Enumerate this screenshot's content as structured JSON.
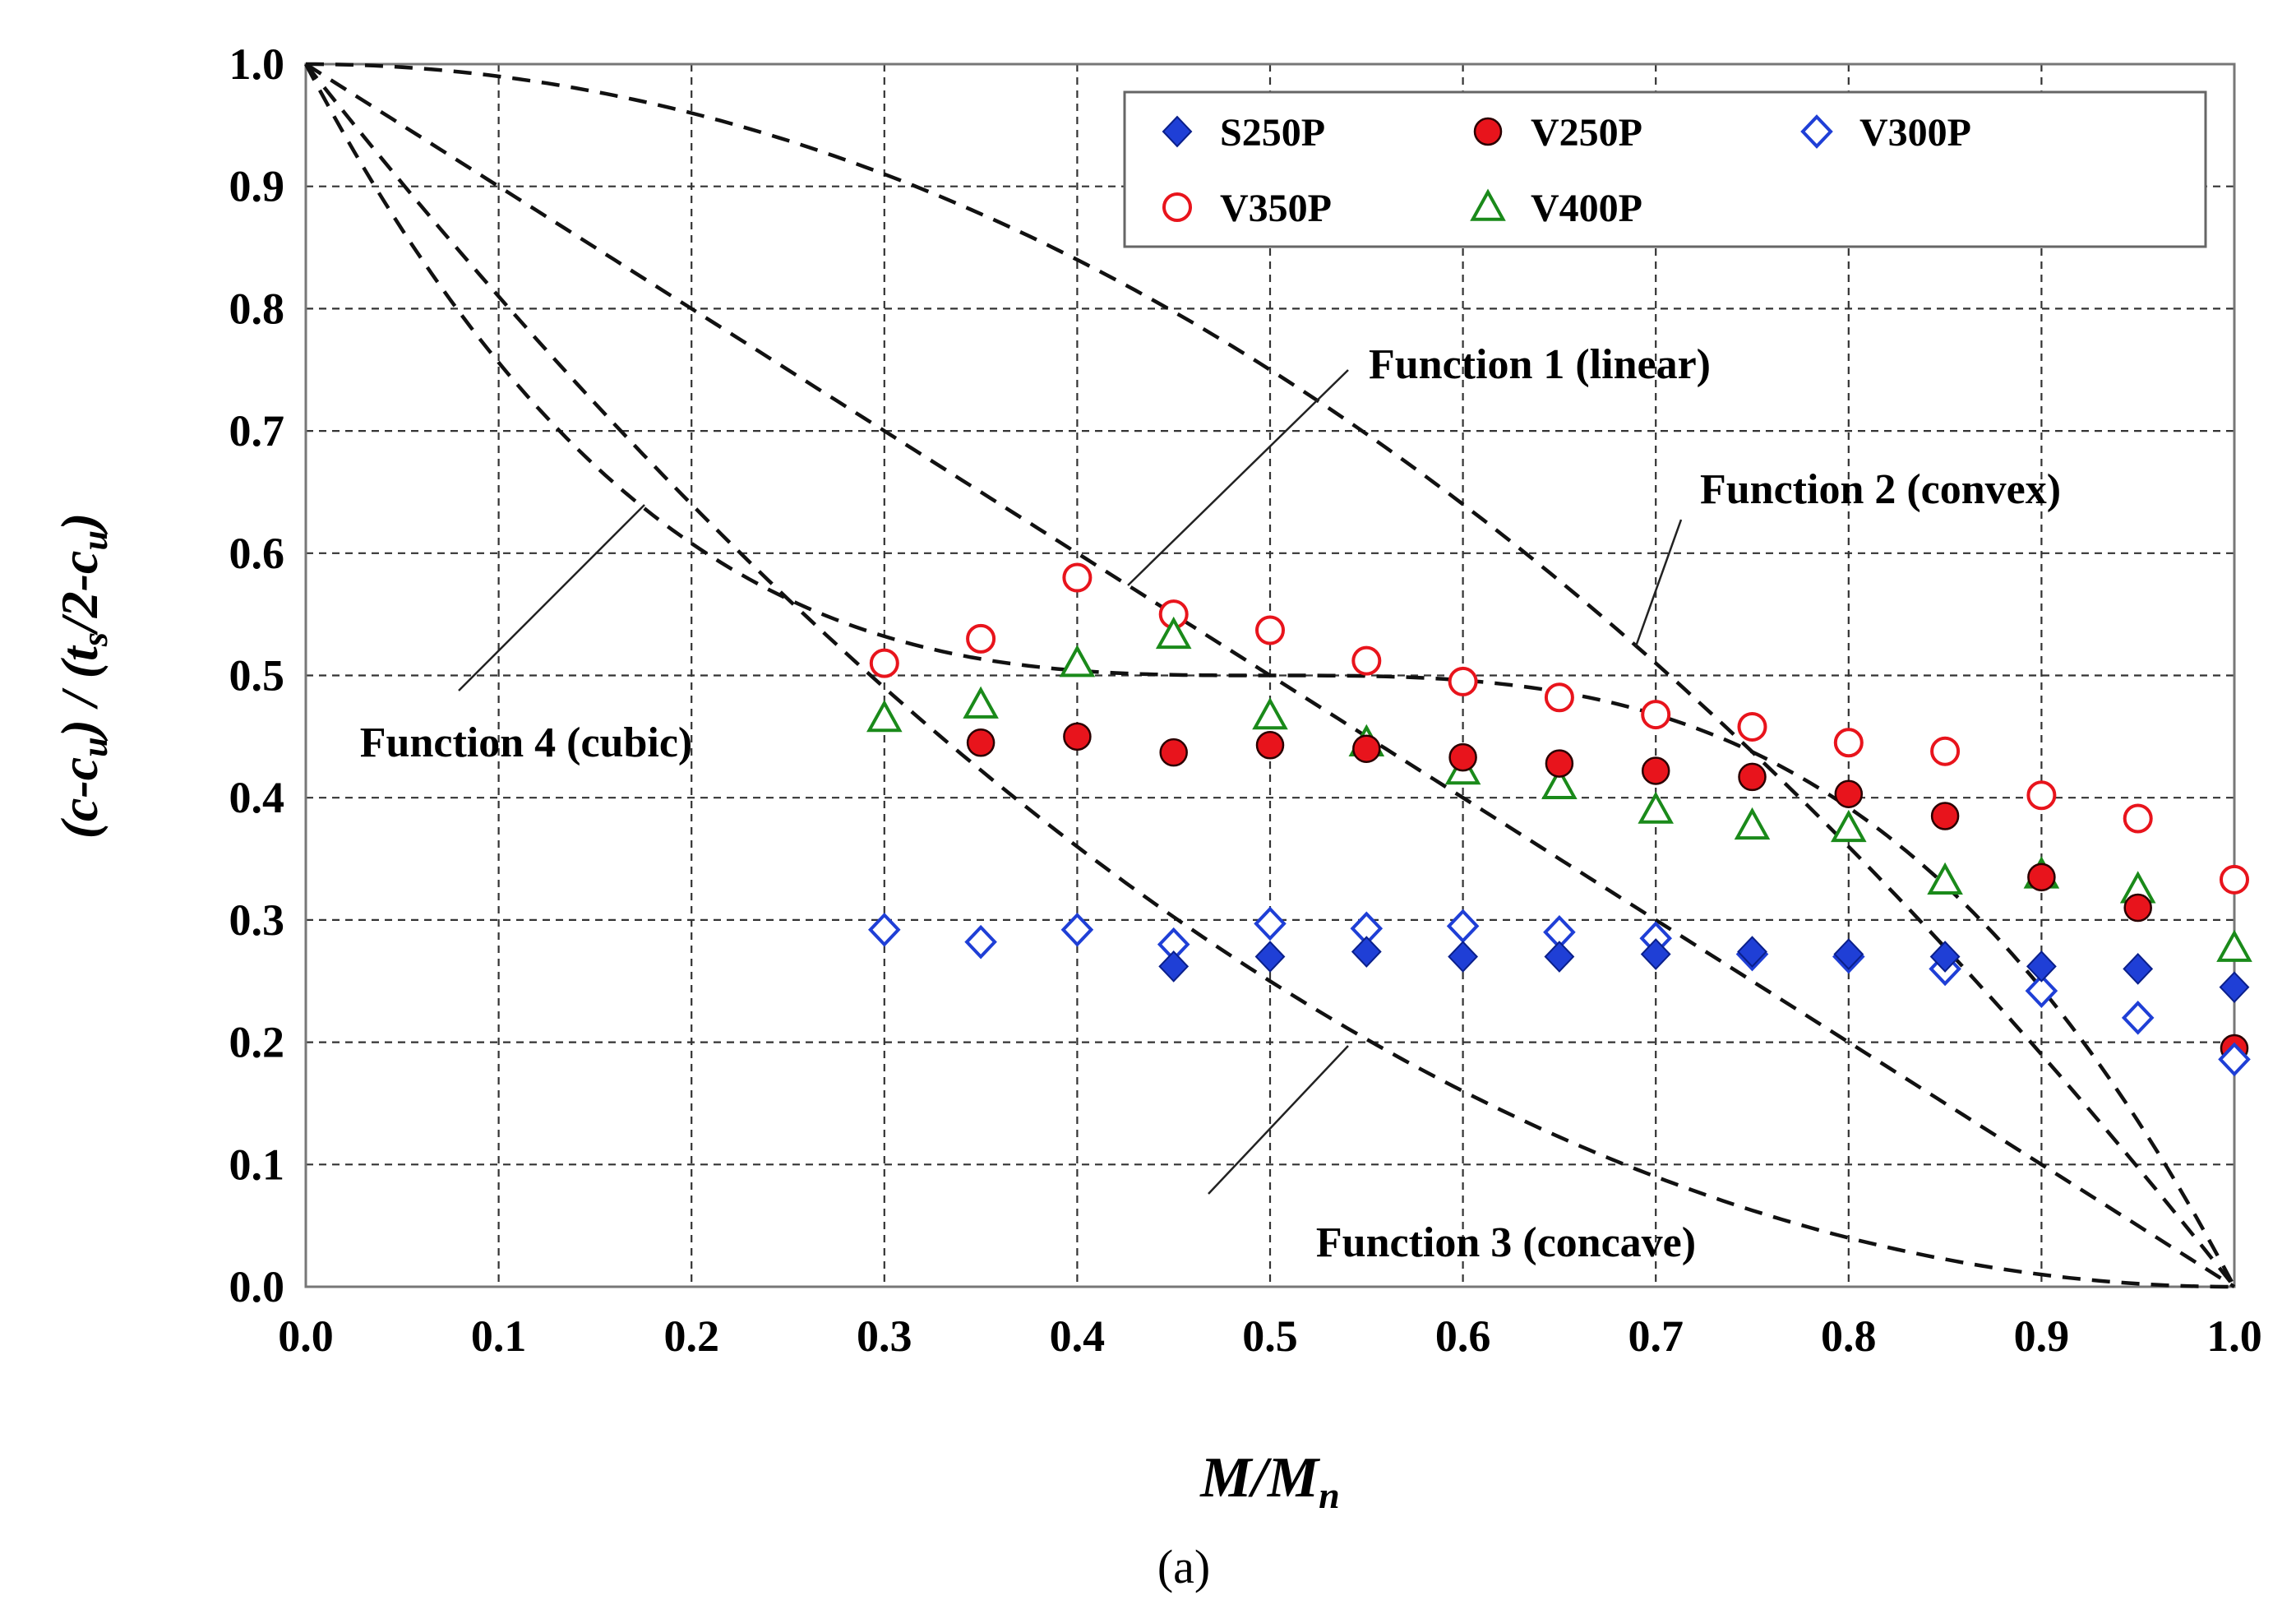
{
  "chart_data": {
    "type": "scatter",
    "title": "",
    "xlabel": "M/Mn",
    "ylabel": "(c-cu) / (ts/2-cu)",
    "xlim": [
      0.0,
      1.0
    ],
    "ylim": [
      0.0,
      1.0
    ],
    "grid": true,
    "legend_position": "top-right",
    "x_ticks": [
      "0.0",
      "0.1",
      "0.2",
      "0.3",
      "0.4",
      "0.5",
      "0.6",
      "0.7",
      "0.8",
      "0.9",
      "1.0"
    ],
    "y_ticks": [
      "0.0",
      "0.1",
      "0.2",
      "0.3",
      "0.4",
      "0.5",
      "0.6",
      "0.7",
      "0.8",
      "0.9",
      "1.0"
    ],
    "series": [
      {
        "name": "S250P",
        "marker": "diamond",
        "filled": true,
        "color": "#1f3fd6",
        "x": [
          0.45,
          0.5,
          0.55,
          0.6,
          0.65,
          0.7,
          0.75,
          0.8,
          0.85,
          0.9,
          0.95,
          1.0
        ],
        "y": [
          0.262,
          0.27,
          0.274,
          0.27,
          0.27,
          0.272,
          0.274,
          0.272,
          0.27,
          0.262,
          0.26,
          0.245
        ]
      },
      {
        "name": "V250P",
        "marker": "circle",
        "filled": true,
        "color": "#e8141c",
        "x": [
          0.35,
          0.4,
          0.45,
          0.5,
          0.55,
          0.6,
          0.65,
          0.7,
          0.75,
          0.8,
          0.85,
          0.9,
          0.95,
          1.0
        ],
        "y": [
          0.445,
          0.45,
          0.437,
          0.443,
          0.44,
          0.433,
          0.428,
          0.422,
          0.417,
          0.403,
          0.385,
          0.335,
          0.31,
          0.195
        ]
      },
      {
        "name": "V300P",
        "marker": "diamond",
        "filled": false,
        "color": "#1f3fd6",
        "x": [
          0.3,
          0.35,
          0.4,
          0.45,
          0.5,
          0.55,
          0.6,
          0.65,
          0.7,
          0.75,
          0.8,
          0.85,
          0.9,
          0.95,
          1.0
        ],
        "y": [
          0.292,
          0.282,
          0.292,
          0.28,
          0.297,
          0.293,
          0.295,
          0.29,
          0.285,
          0.272,
          0.27,
          0.26,
          0.242,
          0.22,
          0.186
        ]
      },
      {
        "name": "V350P",
        "marker": "circle",
        "filled": false,
        "color": "#e8141c",
        "x": [
          0.3,
          0.35,
          0.4,
          0.45,
          0.5,
          0.55,
          0.6,
          0.65,
          0.7,
          0.75,
          0.8,
          0.85,
          0.9,
          0.95,
          1.0
        ],
        "y": [
          0.51,
          0.53,
          0.58,
          0.55,
          0.537,
          0.512,
          0.495,
          0.482,
          0.468,
          0.458,
          0.445,
          0.438,
          0.402,
          0.383,
          0.333
        ]
      },
      {
        "name": "V400P",
        "marker": "triangle",
        "filled": false,
        "color": "#1a8a1a",
        "x": [
          0.3,
          0.35,
          0.4,
          0.45,
          0.5,
          0.55,
          0.6,
          0.65,
          0.7,
          0.75,
          0.8,
          0.85,
          0.9,
          0.95,
          1.0
        ],
        "y": [
          0.465,
          0.476,
          0.51,
          0.533,
          0.467,
          0.445,
          0.422,
          0.41,
          0.39,
          0.377,
          0.375,
          0.332,
          0.337,
          0.325,
          0.277
        ]
      }
    ],
    "functions": [
      {
        "name": "Function 1 (linear)",
        "curve": "linear"
      },
      {
        "name": "Function 2 (convex)",
        "curve": "convex"
      },
      {
        "name": "Function 3 (concave)",
        "curve": "concave"
      },
      {
        "name": "Function 4 (cubic)",
        "curve": "cubic"
      }
    ],
    "caption": "(a)"
  }
}
